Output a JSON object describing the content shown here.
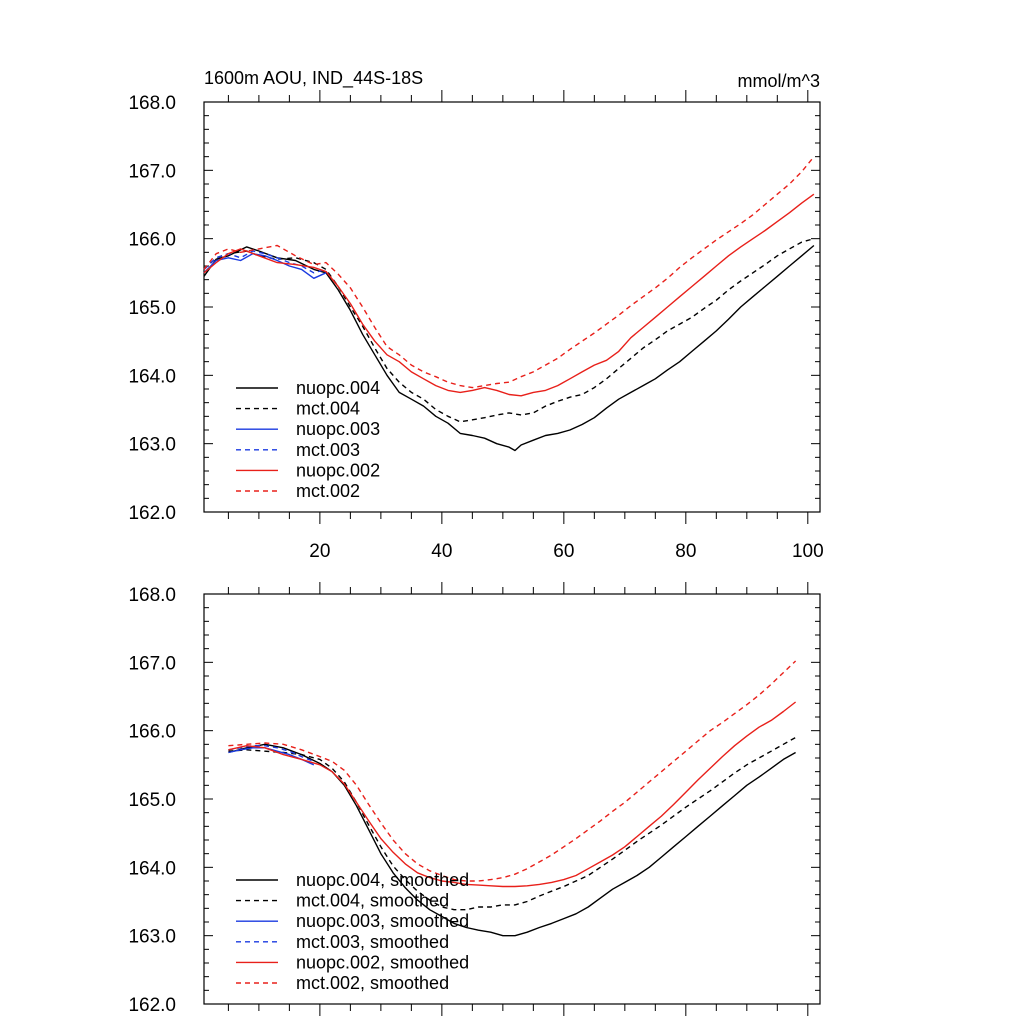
{
  "chart_data": [
    {
      "type": "line",
      "title": "1600m AOU, IND_44S-18S",
      "units": "mmol/m^3",
      "xlabel": "",
      "ylabel": "",
      "xlim": [
        1,
        102
      ],
      "ylim": [
        162.0,
        168.0
      ],
      "xticks": [
        20,
        40,
        60,
        80,
        100
      ],
      "xtick_labels": [
        "20",
        "40",
        "60",
        "80",
        "100"
      ],
      "yticks": [
        162.0,
        163.0,
        164.0,
        165.0,
        166.0,
        167.0,
        168.0
      ],
      "ytick_labels": [
        "162.0",
        "163.0",
        "164.0",
        "165.0",
        "166.0",
        "167.0",
        "168.0"
      ],
      "grid": false,
      "legend_position": "bottom-left",
      "series": [
        {
          "name": "nuopc.004",
          "color": "#000000",
          "dash": "solid",
          "x": [
            1,
            3,
            5,
            8,
            10,
            13,
            16,
            19,
            21,
            23,
            25,
            27,
            29,
            31,
            33,
            35,
            37,
            39,
            41,
            43,
            45,
            47,
            49,
            51,
            52,
            53,
            55,
            57,
            59,
            61,
            63,
            65,
            67,
            69,
            71,
            73,
            75,
            77,
            79,
            81,
            83,
            85,
            87,
            89,
            91,
            93,
            95,
            97,
            99,
            101
          ],
          "y": [
            165.45,
            165.7,
            165.75,
            165.88,
            165.82,
            165.72,
            165.68,
            165.55,
            165.5,
            165.25,
            164.95,
            164.6,
            164.3,
            164.0,
            163.75,
            163.65,
            163.55,
            163.4,
            163.3,
            163.15,
            163.12,
            163.08,
            163.0,
            162.95,
            162.9,
            162.98,
            163.05,
            163.12,
            163.15,
            163.2,
            163.28,
            163.38,
            163.52,
            163.65,
            163.75,
            163.85,
            163.95,
            164.08,
            164.2,
            164.35,
            164.5,
            164.65,
            164.82,
            165.0,
            165.15,
            165.3,
            165.45,
            165.6,
            165.75,
            165.9
          ]
        },
        {
          "name": "mct.004",
          "color": "#000000",
          "dash": "dashed",
          "x": [
            1,
            3,
            5,
            8,
            10,
            13,
            16,
            19,
            21,
            23,
            25,
            27,
            29,
            31,
            33,
            35,
            37,
            39,
            41,
            43,
            45,
            47,
            49,
            51,
            53,
            55,
            57,
            59,
            61,
            63,
            65,
            67,
            69,
            71,
            73,
            75,
            77,
            79,
            81,
            83,
            85,
            87,
            89,
            91,
            93,
            95,
            97,
            99,
            101
          ],
          "y": [
            165.55,
            165.72,
            165.78,
            165.82,
            165.75,
            165.7,
            165.72,
            165.65,
            165.55,
            165.3,
            165.0,
            164.72,
            164.4,
            164.1,
            163.9,
            163.75,
            163.65,
            163.5,
            163.4,
            163.32,
            163.35,
            163.38,
            163.42,
            163.45,
            163.42,
            163.45,
            163.55,
            163.62,
            163.68,
            163.72,
            163.82,
            163.95,
            164.1,
            164.25,
            164.4,
            164.52,
            164.65,
            164.75,
            164.85,
            164.98,
            165.1,
            165.25,
            165.38,
            165.5,
            165.62,
            165.75,
            165.85,
            165.95,
            166.0
          ]
        },
        {
          "name": "nuopc.003",
          "color": "#1a3ae0",
          "dash": "solid",
          "x": [
            1,
            3,
            5,
            7,
            9,
            11,
            13,
            15,
            17,
            19,
            21
          ],
          "y": [
            165.5,
            165.68,
            165.72,
            165.68,
            165.78,
            165.75,
            165.68,
            165.6,
            165.55,
            165.42,
            165.5
          ]
        },
        {
          "name": "mct.003",
          "color": "#1a3ae0",
          "dash": "dashed",
          "x": [
            1,
            3,
            5,
            7,
            9,
            11,
            13,
            15,
            17,
            19,
            21
          ],
          "y": [
            165.55,
            165.72,
            165.78,
            165.72,
            165.82,
            165.78,
            165.72,
            165.65,
            165.6,
            165.5,
            165.55
          ]
        },
        {
          "name": "nuopc.002",
          "color": "#e8201a",
          "dash": "solid",
          "x": [
            1,
            3,
            5,
            7,
            10,
            13,
            16,
            19,
            21,
            23,
            25,
            27,
            29,
            31,
            33,
            35,
            37,
            39,
            41,
            43,
            45,
            47,
            49,
            51,
            53,
            55,
            57,
            59,
            61,
            63,
            65,
            67,
            69,
            71,
            73,
            75,
            77,
            79,
            81,
            83,
            85,
            87,
            89,
            91,
            93,
            95,
            97,
            99,
            101
          ],
          "y": [
            165.5,
            165.65,
            165.78,
            165.85,
            165.75,
            165.65,
            165.62,
            165.58,
            165.52,
            165.3,
            165.05,
            164.75,
            164.5,
            164.3,
            164.2,
            164.05,
            163.95,
            163.85,
            163.78,
            163.75,
            163.78,
            163.82,
            163.78,
            163.72,
            163.7,
            163.75,
            163.78,
            163.85,
            163.95,
            164.05,
            164.15,
            164.22,
            164.35,
            164.55,
            164.7,
            164.85,
            165.0,
            165.15,
            165.3,
            165.45,
            165.6,
            165.75,
            165.88,
            166.0,
            166.12,
            166.25,
            166.38,
            166.52,
            166.65
          ]
        },
        {
          "name": "mct.002",
          "color": "#e8201a",
          "dash": "dashed",
          "x": [
            1,
            3,
            5,
            7,
            10,
            13,
            16,
            19,
            21,
            23,
            25,
            27,
            29,
            31,
            33,
            35,
            37,
            39,
            41,
            43,
            45,
            47,
            49,
            51,
            53,
            55,
            57,
            59,
            61,
            63,
            65,
            67,
            69,
            71,
            73,
            75,
            77,
            79,
            81,
            83,
            85,
            87,
            89,
            91,
            93,
            95,
            97,
            99,
            101
          ],
          "y": [
            165.55,
            165.78,
            165.85,
            165.8,
            165.85,
            165.9,
            165.75,
            165.62,
            165.65,
            165.48,
            165.28,
            165.0,
            164.7,
            164.42,
            164.3,
            164.15,
            164.05,
            163.98,
            163.9,
            163.85,
            163.82,
            163.85,
            163.88,
            163.9,
            163.98,
            164.05,
            164.15,
            164.25,
            164.38,
            164.5,
            164.62,
            164.75,
            164.88,
            165.02,
            165.15,
            165.28,
            165.42,
            165.58,
            165.72,
            165.85,
            165.98,
            166.1,
            166.22,
            166.35,
            166.5,
            166.65,
            166.8,
            166.98,
            167.2
          ]
        }
      ],
      "legend": [
        "nuopc.004",
        "mct.004",
        "nuopc.003",
        "mct.003",
        "nuopc.002",
        "mct.002"
      ]
    },
    {
      "type": "line",
      "title": "",
      "xlabel": "",
      "ylabel": "",
      "xlim": [
        1,
        102
      ],
      "ylim": [
        162.0,
        168.0
      ],
      "xticks": [
        20,
        40,
        60,
        80,
        100
      ],
      "yticks": [
        162.0,
        163.0,
        164.0,
        165.0,
        166.0,
        167.0,
        168.0
      ],
      "ytick_labels": [
        "162.0",
        "163.0",
        "164.0",
        "165.0",
        "166.0",
        "167.0",
        "168.0"
      ],
      "grid": false,
      "legend_position": "bottom-left",
      "series": [
        {
          "name": "nuopc.004, smoothed",
          "color": "#000000",
          "dash": "solid",
          "x": [
            5,
            8,
            11,
            14,
            17,
            20,
            22,
            24,
            26,
            28,
            30,
            32,
            34,
            36,
            38,
            40,
            42,
            44,
            46,
            48,
            50,
            52,
            54,
            56,
            58,
            60,
            62,
            64,
            66,
            68,
            70,
            72,
            74,
            76,
            78,
            80,
            82,
            84,
            86,
            88,
            90,
            92,
            94,
            96,
            98
          ],
          "y": [
            165.68,
            165.75,
            165.8,
            165.75,
            165.65,
            165.52,
            165.4,
            165.2,
            164.9,
            164.55,
            164.2,
            163.92,
            163.7,
            163.52,
            163.38,
            163.28,
            163.18,
            163.12,
            163.08,
            163.05,
            163.0,
            163.0,
            163.05,
            163.12,
            163.18,
            163.25,
            163.32,
            163.42,
            163.55,
            163.68,
            163.78,
            163.88,
            164.0,
            164.15,
            164.3,
            164.45,
            164.6,
            164.75,
            164.9,
            165.05,
            165.2,
            165.32,
            165.45,
            165.58,
            165.68
          ]
        },
        {
          "name": "mct.004, smoothed",
          "color": "#000000",
          "dash": "dashed",
          "x": [
            5,
            8,
            11,
            14,
            17,
            20,
            22,
            24,
            26,
            28,
            30,
            32,
            34,
            36,
            38,
            40,
            42,
            44,
            46,
            48,
            50,
            52,
            54,
            56,
            58,
            60,
            62,
            64,
            66,
            68,
            70,
            72,
            74,
            76,
            78,
            80,
            82,
            84,
            86,
            88,
            90,
            92,
            94,
            96,
            98
          ],
          "y": [
            165.7,
            165.72,
            165.7,
            165.68,
            165.65,
            165.58,
            165.45,
            165.25,
            164.95,
            164.62,
            164.3,
            164.02,
            163.82,
            163.65,
            163.52,
            163.42,
            163.38,
            163.38,
            163.42,
            163.42,
            163.45,
            163.45,
            163.5,
            163.58,
            163.65,
            163.72,
            163.8,
            163.88,
            164.0,
            164.12,
            164.25,
            164.38,
            164.5,
            164.62,
            164.75,
            164.88,
            165.0,
            165.12,
            165.25,
            165.38,
            165.5,
            165.6,
            165.7,
            165.8,
            165.9
          ]
        },
        {
          "name": "nuopc.003, smoothed",
          "color": "#1a3ae0",
          "dash": "solid",
          "x": [
            5,
            7,
            9,
            11,
            13,
            15,
            17,
            19
          ],
          "y": [
            165.68,
            165.72,
            165.75,
            165.75,
            165.7,
            165.65,
            165.58,
            165.5
          ]
        },
        {
          "name": "mct.003, smoothed",
          "color": "#1a3ae0",
          "dash": "dashed",
          "x": [
            5,
            7,
            9,
            11,
            13,
            15,
            17,
            19
          ],
          "y": [
            165.72,
            165.75,
            165.78,
            165.78,
            165.75,
            165.7,
            165.62,
            165.55
          ]
        },
        {
          "name": "nuopc.002, smoothed",
          "color": "#e8201a",
          "dash": "solid",
          "x": [
            5,
            8,
            11,
            14,
            17,
            20,
            22,
            24,
            26,
            28,
            30,
            32,
            34,
            36,
            38,
            40,
            42,
            44,
            46,
            48,
            50,
            52,
            54,
            56,
            58,
            60,
            62,
            64,
            66,
            68,
            70,
            72,
            74,
            76,
            78,
            80,
            82,
            84,
            86,
            88,
            90,
            92,
            94,
            96,
            98
          ],
          "y": [
            165.72,
            165.78,
            165.75,
            165.65,
            165.58,
            165.5,
            165.4,
            165.22,
            164.95,
            164.68,
            164.42,
            164.22,
            164.05,
            163.92,
            163.85,
            163.8,
            163.78,
            163.75,
            163.74,
            163.73,
            163.72,
            163.72,
            163.73,
            163.75,
            163.78,
            163.82,
            163.88,
            163.98,
            164.08,
            164.18,
            164.3,
            164.45,
            164.6,
            164.75,
            164.92,
            165.1,
            165.28,
            165.45,
            165.62,
            165.78,
            165.92,
            166.05,
            166.15,
            166.28,
            166.42
          ]
        },
        {
          "name": "mct.002, smoothed",
          "color": "#e8201a",
          "dash": "dashed",
          "x": [
            5,
            8,
            11,
            14,
            17,
            20,
            22,
            24,
            26,
            28,
            30,
            32,
            34,
            36,
            38,
            40,
            42,
            44,
            46,
            48,
            50,
            52,
            54,
            56,
            58,
            60,
            62,
            64,
            66,
            68,
            70,
            72,
            74,
            76,
            78,
            80,
            82,
            84,
            86,
            88,
            90,
            92,
            94,
            96,
            98
          ],
          "y": [
            165.78,
            165.8,
            165.82,
            165.8,
            165.72,
            165.62,
            165.55,
            165.42,
            165.2,
            164.92,
            164.65,
            164.4,
            164.2,
            164.05,
            163.95,
            163.88,
            163.82,
            163.8,
            163.8,
            163.82,
            163.85,
            163.9,
            163.98,
            164.08,
            164.18,
            164.3,
            164.42,
            164.55,
            164.68,
            164.82,
            164.95,
            165.1,
            165.25,
            165.4,
            165.55,
            165.7,
            165.85,
            166.0,
            166.12,
            166.25,
            166.38,
            166.52,
            166.68,
            166.85,
            167.02
          ]
        }
      ],
      "legend": [
        "nuopc.004, smoothed",
        "mct.004, smoothed",
        "nuopc.003, smoothed",
        "mct.003, smoothed",
        "nuopc.002, smoothed",
        "mct.002, smoothed"
      ]
    }
  ]
}
